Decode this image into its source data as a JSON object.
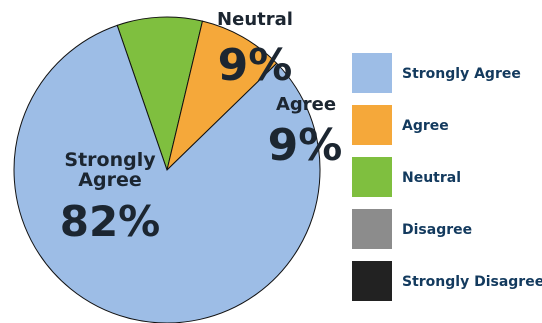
{
  "chart_data": {
    "type": "pie",
    "slices": [
      {
        "name": "Strongly Agree",
        "value": 82,
        "label_line1": "Strongly",
        "label_line2": "Agree",
        "pct_text": "82%",
        "color": "#9dbde6"
      },
      {
        "name": "Agree",
        "value": 9,
        "label_line1": "Agree",
        "label_line2": "",
        "pct_text": "9%",
        "color": "#f5a83a"
      },
      {
        "name": "Neutral",
        "value": 9,
        "label_line1": "Neutral",
        "label_line2": "",
        "pct_text": "9%",
        "color": "#7fbf3f"
      },
      {
        "name": "Disagree",
        "value": 0,
        "label_line1": "",
        "label_line2": "",
        "pct_text": "",
        "color": "#8c8c8c"
      },
      {
        "name": "Strongly Disagree",
        "value": 0,
        "label_line1": "",
        "label_line2": "",
        "pct_text": "",
        "color": "#222222"
      }
    ],
    "legend": {
      "placement": "right",
      "entries": [
        "Strongly Agree",
        "Agree",
        "Neutral",
        "Disagree",
        "Strongly Disagree"
      ]
    },
    "colors": {
      "outline": "#111111",
      "label_text": "#1c2631",
      "legend_text": "#133a5e"
    }
  }
}
